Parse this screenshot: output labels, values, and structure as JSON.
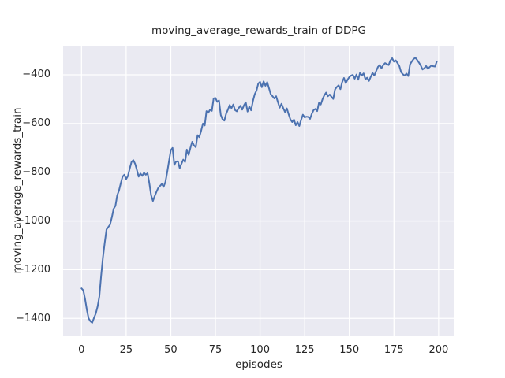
{
  "chart_data": {
    "type": "line",
    "title": "moving_average_rewards_train of DDPG",
    "xlabel": "episodes",
    "ylabel": "moving_average_rewards_train",
    "legend": false,
    "grid": true,
    "x_start": 0,
    "x_step": 1,
    "xlim": [
      -10.3,
      208.9
    ],
    "ylim": [
      -1473.5,
      -280.4
    ],
    "xticks": [
      {
        "v": 0,
        "label": "0"
      },
      {
        "v": 25,
        "label": "25"
      },
      {
        "v": 50,
        "label": "50"
      },
      {
        "v": 75,
        "label": "75"
      },
      {
        "v": 100,
        "label": "100"
      },
      {
        "v": 125,
        "label": "125"
      },
      {
        "v": 150,
        "label": "150"
      },
      {
        "v": 175,
        "label": "175"
      },
      {
        "v": 200,
        "label": "200"
      }
    ],
    "yticks": [
      {
        "v": -400,
        "label": "−400"
      },
      {
        "v": -600,
        "label": "−600"
      },
      {
        "v": -800,
        "label": "−800"
      },
      {
        "v": -1000,
        "label": "−1000"
      },
      {
        "v": -1200,
        "label": "−1200"
      },
      {
        "v": -1400,
        "label": "−1400"
      }
    ],
    "values": [
      -1277,
      -1285,
      -1320,
      -1365,
      -1400,
      -1412,
      -1418,
      -1398,
      -1380,
      -1352,
      -1310,
      -1225,
      -1150,
      -1090,
      -1035,
      -1025,
      -1015,
      -985,
      -950,
      -938,
      -895,
      -875,
      -845,
      -818,
      -810,
      -828,
      -815,
      -785,
      -758,
      -750,
      -765,
      -790,
      -818,
      -805,
      -815,
      -802,
      -810,
      -804,
      -845,
      -895,
      -918,
      -898,
      -880,
      -864,
      -856,
      -848,
      -860,
      -840,
      -800,
      -755,
      -710,
      -700,
      -770,
      -756,
      -755,
      -783,
      -765,
      -748,
      -758,
      -707,
      -729,
      -700,
      -675,
      -690,
      -697,
      -648,
      -656,
      -630,
      -600,
      -608,
      -549,
      -556,
      -543,
      -548,
      -497,
      -495,
      -511,
      -505,
      -565,
      -583,
      -588,
      -560,
      -543,
      -524,
      -537,
      -522,
      -545,
      -550,
      -537,
      -527,
      -543,
      -525,
      -513,
      -551,
      -530,
      -546,
      -508,
      -480,
      -465,
      -436,
      -429,
      -451,
      -427,
      -445,
      -430,
      -455,
      -480,
      -488,
      -497,
      -488,
      -512,
      -535,
      -519,
      -537,
      -553,
      -538,
      -562,
      -583,
      -594,
      -584,
      -607,
      -594,
      -610,
      -585,
      -564,
      -575,
      -572,
      -573,
      -581,
      -560,
      -545,
      -540,
      -549,
      -515,
      -522,
      -500,
      -484,
      -473,
      -488,
      -481,
      -490,
      -499,
      -460,
      -450,
      -443,
      -459,
      -430,
      -413,
      -434,
      -420,
      -409,
      -403,
      -400,
      -416,
      -399,
      -420,
      -391,
      -403,
      -394,
      -418,
      -412,
      -425,
      -408,
      -392,
      -403,
      -385,
      -368,
      -360,
      -373,
      -360,
      -352,
      -356,
      -360,
      -341,
      -332,
      -346,
      -341,
      -352,
      -364,
      -389,
      -398,
      -403,
      -395,
      -405,
      -357,
      -345,
      -335,
      -330,
      -339,
      -350,
      -362,
      -378,
      -373,
      -364,
      -375,
      -368,
      -362,
      -365,
      -366,
      -345
    ],
    "style": {
      "line_color": "#4c72b0",
      "line_width": 2,
      "axes_bg": "#eaeaf2",
      "grid_color": "#ffffff",
      "text_color": "#262626",
      "fig_bg": "#ffffff"
    }
  }
}
